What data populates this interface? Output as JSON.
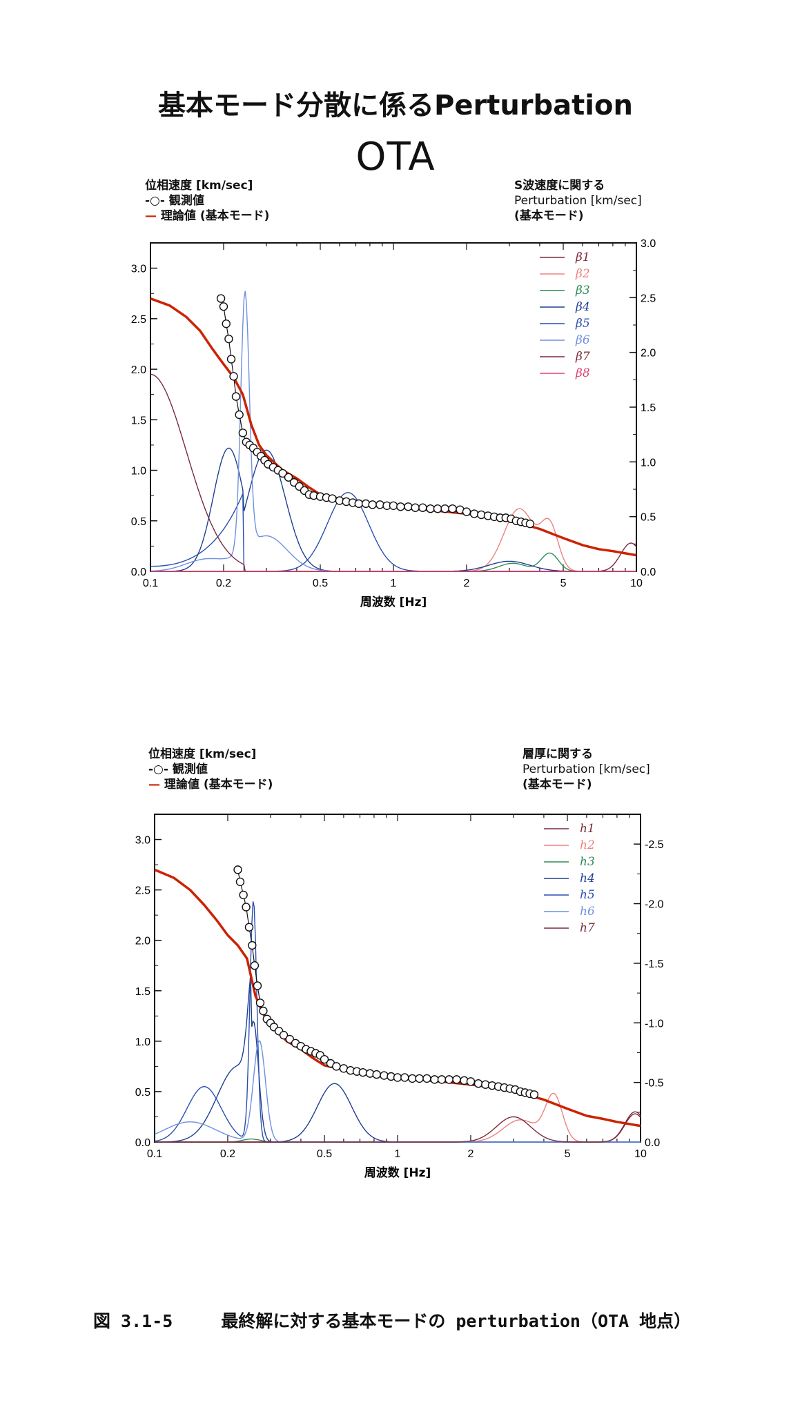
{
  "page_title": "基本モード分散に係るPerturbation",
  "site_title": "OTA",
  "caption": {
    "figure_no": "図 3.1-5",
    "text": "最終解に対する基本モードの perturbation（OTA 地点）"
  },
  "colors": {
    "theoretical": "#cc2200",
    "observed_marker": "#111111"
  },
  "chart_data": [
    {
      "type": "line",
      "left_axis": {
        "title": "位相速度 [km/sec]",
        "ylim": [
          0,
          3.25
        ],
        "ticks": [
          "0.0",
          "0.5",
          "1.0",
          "1.5",
          "2.0",
          "2.5",
          "3.0"
        ]
      },
      "right_axis": {
        "title_line1": "S波速度に関する",
        "title_line2": "Perturbation [km/sec]",
        "title_line3": "(基本モード)",
        "ylim": [
          0,
          3.0
        ],
        "ticks": [
          "0.0",
          "0.5",
          "1.0",
          "1.5",
          "2.0",
          "2.5",
          "3.0"
        ]
      },
      "x_axis": {
        "label": "周波数 [Hz]",
        "scale": "log",
        "xlim": [
          0.1,
          10
        ],
        "ticks": [
          "0.1",
          "0.2",
          "0.5",
          "1",
          "2",
          "5",
          "10"
        ]
      },
      "legend_left": {
        "observed": "観測値",
        "theoretical": "理論値 (基本モード)"
      },
      "observed": {
        "x": [
          0.195,
          0.2,
          0.205,
          0.21,
          0.215,
          0.22,
          0.225,
          0.232,
          0.24,
          0.248,
          0.256,
          0.265,
          0.275,
          0.285,
          0.295,
          0.305,
          0.32,
          0.335,
          0.35,
          0.37,
          0.39,
          0.41,
          0.43,
          0.45,
          0.47,
          0.5,
          0.53,
          0.56,
          0.6,
          0.64,
          0.68,
          0.72,
          0.77,
          0.82,
          0.88,
          0.94,
          1.0,
          1.07,
          1.15,
          1.23,
          1.32,
          1.42,
          1.52,
          1.63,
          1.75,
          1.88,
          2.0,
          2.15,
          2.3,
          2.45,
          2.6,
          2.75,
          2.9,
          3.05,
          3.2,
          3.35,
          3.5,
          3.65
        ],
        "y": [
          2.7,
          2.62,
          2.45,
          2.3,
          2.1,
          1.93,
          1.73,
          1.55,
          1.37,
          1.28,
          1.25,
          1.22,
          1.18,
          1.14,
          1.1,
          1.06,
          1.03,
          1.0,
          0.97,
          0.93,
          0.88,
          0.84,
          0.8,
          0.76,
          0.75,
          0.74,
          0.73,
          0.72,
          0.7,
          0.69,
          0.68,
          0.67,
          0.67,
          0.66,
          0.66,
          0.65,
          0.65,
          0.64,
          0.64,
          0.63,
          0.63,
          0.62,
          0.62,
          0.62,
          0.62,
          0.61,
          0.59,
          0.57,
          0.56,
          0.55,
          0.54,
          0.53,
          0.53,
          0.52,
          0.5,
          0.49,
          0.48,
          0.47
        ]
      },
      "theoretical": {
        "x": [
          0.1,
          0.12,
          0.14,
          0.16,
          0.18,
          0.2,
          0.22,
          0.24,
          0.26,
          0.28,
          0.3,
          0.35,
          0.4,
          0.45,
          0.5,
          0.6,
          0.7,
          0.8,
          1.0,
          1.2,
          1.5,
          2.0,
          2.5,
          3.0,
          3.5,
          4.0,
          5.0,
          6.0,
          7.0,
          8.0,
          10.0
        ],
        "y": [
          2.7,
          2.63,
          2.52,
          2.38,
          2.2,
          2.05,
          1.92,
          1.75,
          1.45,
          1.25,
          1.15,
          1.0,
          0.92,
          0.83,
          0.76,
          0.72,
          0.68,
          0.66,
          0.64,
          0.62,
          0.6,
          0.57,
          0.54,
          0.5,
          0.46,
          0.42,
          0.33,
          0.26,
          0.22,
          0.2,
          0.16
        ]
      },
      "series": [
        {
          "name": "β1",
          "color": "#7a2a3a"
        },
        {
          "name": "β2",
          "color": "#ee8080"
        },
        {
          "name": "β3",
          "color": "#2e8b57"
        },
        {
          "name": "β4",
          "color": "#1f3f8f"
        },
        {
          "name": "β5",
          "color": "#2a4fb0"
        },
        {
          "name": "β6",
          "color": "#6f8fe0"
        },
        {
          "name": "β7",
          "color": "#7a2a3a"
        },
        {
          "name": "β8",
          "color": "#e04070"
        }
      ],
      "legend_position": "top-right"
    },
    {
      "type": "line",
      "left_axis": {
        "title": "位相速度 [km/sec]",
        "ylim": [
          0,
          3.25
        ],
        "ticks": [
          "0.0",
          "0.5",
          "1.0",
          "1.5",
          "2.0",
          "2.5",
          "3.0"
        ]
      },
      "right_axis": {
        "title_line1": "層厚に関する",
        "title_line2": "Perturbation [km/sec]",
        "title_line3": "(基本モード)",
        "ylim": [
          0,
          -2.75
        ],
        "ticks": [
          "0.0",
          "-0.5",
          "-1.0",
          "-1.5",
          "-2.0",
          "-2.5"
        ]
      },
      "x_axis": {
        "label": "周波数 [Hz]",
        "scale": "log",
        "xlim": [
          0.1,
          10
        ],
        "ticks": [
          "0.1",
          "0.2",
          "0.5",
          "1",
          "2",
          "5",
          "10"
        ]
      },
      "legend_left": {
        "observed": "観測値",
        "theoretical": "理論値 (基本モード)"
      },
      "observed": {
        "x": [
          0.22,
          0.225,
          0.232,
          0.238,
          0.245,
          0.252,
          0.258,
          0.265,
          0.272,
          0.28,
          0.29,
          0.3,
          0.31,
          0.325,
          0.34,
          0.36,
          0.38,
          0.4,
          0.42,
          0.44,
          0.46,
          0.48,
          0.5,
          0.53,
          0.56,
          0.6,
          0.64,
          0.68,
          0.72,
          0.77,
          0.82,
          0.88,
          0.94,
          1.0,
          1.07,
          1.15,
          1.23,
          1.32,
          1.42,
          1.52,
          1.63,
          1.75,
          1.88,
          2.0,
          2.15,
          2.3,
          2.45,
          2.6,
          2.75,
          2.9,
          3.05,
          3.2,
          3.35,
          3.5,
          3.65
        ],
        "y": [
          2.7,
          2.58,
          2.45,
          2.33,
          2.13,
          1.95,
          1.75,
          1.55,
          1.38,
          1.3,
          1.22,
          1.18,
          1.14,
          1.1,
          1.06,
          1.02,
          0.98,
          0.95,
          0.92,
          0.9,
          0.88,
          0.86,
          0.82,
          0.78,
          0.75,
          0.73,
          0.71,
          0.7,
          0.69,
          0.68,
          0.67,
          0.66,
          0.65,
          0.64,
          0.64,
          0.63,
          0.63,
          0.63,
          0.62,
          0.62,
          0.62,
          0.62,
          0.61,
          0.6,
          0.58,
          0.57,
          0.56,
          0.55,
          0.54,
          0.53,
          0.52,
          0.5,
          0.49,
          0.48,
          0.47
        ]
      },
      "theoretical": {
        "x": [
          0.1,
          0.12,
          0.14,
          0.16,
          0.18,
          0.2,
          0.22,
          0.24,
          0.26,
          0.28,
          0.3,
          0.35,
          0.4,
          0.45,
          0.5,
          0.6,
          0.7,
          0.8,
          1.0,
          1.2,
          1.5,
          2.0,
          2.5,
          3.0,
          3.5,
          4.0,
          5.0,
          6.0,
          7.0,
          8.0,
          10.0
        ],
        "y": [
          2.7,
          2.62,
          2.5,
          2.35,
          2.2,
          2.05,
          1.95,
          1.82,
          1.45,
          1.27,
          1.16,
          1.0,
          0.92,
          0.83,
          0.76,
          0.72,
          0.68,
          0.66,
          0.64,
          0.62,
          0.6,
          0.57,
          0.54,
          0.5,
          0.46,
          0.42,
          0.33,
          0.26,
          0.23,
          0.2,
          0.16
        ]
      },
      "series": [
        {
          "name": "h1",
          "color": "#7a2a3a"
        },
        {
          "name": "h2",
          "color": "#ee8080"
        },
        {
          "name": "h3",
          "color": "#2e8b57"
        },
        {
          "name": "h4",
          "color": "#1f3f8f"
        },
        {
          "name": "h5",
          "color": "#2a4fb0"
        },
        {
          "name": "h6",
          "color": "#6f8fe0"
        },
        {
          "name": "h7",
          "color": "#7a2a3a"
        }
      ],
      "legend_position": "top-right"
    }
  ]
}
